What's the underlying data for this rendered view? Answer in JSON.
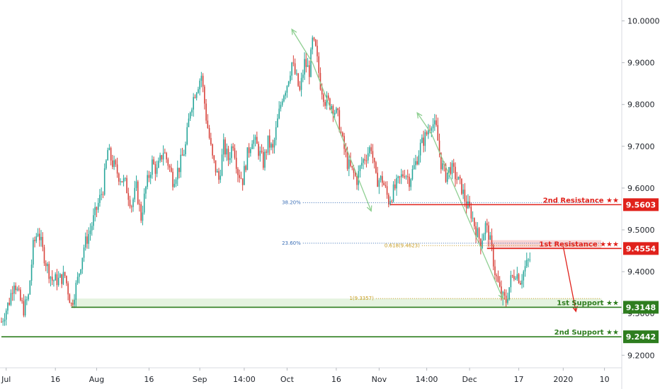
{
  "colors": {
    "up": "#26a69a",
    "down": "#d7413a",
    "support": "#2e7d1f",
    "resistance": "#e0221c",
    "fib_blue": "#3b6fb6",
    "fib_gold": "#c79a1c",
    "arrow_green": "#8fcf92",
    "zone_support": "#dff0d8",
    "zone_resistance": "#f6c9c9"
  },
  "chart_data": {
    "type": "candlestick",
    "ylim": [
      9.17,
      10.05
    ],
    "y_ticks": [
      "10.0000",
      "9.9000",
      "9.8000",
      "9.7000",
      "9.6000",
      "9.5000",
      "9.4000",
      "9.3000",
      "9.2000"
    ],
    "y_tick_values": [
      10.0,
      9.9,
      9.8,
      9.7,
      9.6,
      9.5,
      9.4,
      9.3,
      9.2
    ],
    "x_ticks": [
      "Jul",
      "16",
      "Aug",
      "16",
      "Sep",
      "14:00",
      "Oct",
      "16",
      "Nov",
      "14:00",
      "Dec",
      "17",
      "2020",
      "10"
    ],
    "x_tick_index": [
      3,
      34,
      60,
      93,
      125,
      153,
      180,
      211,
      238,
      268,
      295,
      326,
      354,
      380
    ],
    "x_count": 390,
    "grid": false,
    "levels": [
      {
        "id": "r2",
        "label": "2nd Resistance ★★",
        "value": "9.5603",
        "y": 9.5603,
        "start_index": 245,
        "kind": "resistance"
      },
      {
        "id": "r1",
        "label": "1st Resistance ★★★",
        "value": "9.4554",
        "y": 9.4554,
        "start_index": 306,
        "kind": "resistance"
      },
      {
        "id": "s1",
        "label": "1st Support ★★",
        "value": "9.3148",
        "y": 9.3148,
        "start_index": 44,
        "kind": "support"
      },
      {
        "id": "s2",
        "label": "2nd Support ★★",
        "value": "9.2442",
        "y": 9.2442,
        "start_index": 0,
        "kind": "support"
      }
    ],
    "fib_labels": [
      {
        "id": "f382",
        "text": "38.20%",
        "y": 9.565,
        "from": 190,
        "to": 378,
        "color": "blue"
      },
      {
        "id": "f236",
        "text": "23.60%",
        "y": 9.468,
        "from": 190,
        "to": 378,
        "color": "blue"
      },
      {
        "id": "f618",
        "text": "0.618(9.4623)",
        "y": 9.4623,
        "from": 265,
        "to": 378,
        "color": "gold"
      },
      {
        "id": "f1",
        "text": "1(9.3357)",
        "y": 9.3357,
        "from": 236,
        "to": 378,
        "color": "gold"
      }
    ],
    "ohlc_path": [
      [
        0,
        9.28
      ],
      [
        5,
        9.33
      ],
      [
        8,
        9.38
      ],
      [
        11,
        9.34
      ],
      [
        14,
        9.31
      ],
      [
        17,
        9.34
      ],
      [
        20,
        9.46
      ],
      [
        23,
        9.5
      ],
      [
        26,
        9.45
      ],
      [
        29,
        9.41
      ],
      [
        32,
        9.38
      ],
      [
        36,
        9.38
      ],
      [
        40,
        9.39
      ],
      [
        44,
        9.32
      ],
      [
        48,
        9.38
      ],
      [
        52,
        9.46
      ],
      [
        56,
        9.5
      ],
      [
        60,
        9.55
      ],
      [
        64,
        9.6
      ],
      [
        67,
        9.69
      ],
      [
        70,
        9.66
      ],
      [
        74,
        9.63
      ],
      [
        78,
        9.61
      ],
      [
        82,
        9.56
      ],
      [
        85,
        9.6
      ],
      [
        88,
        9.53
      ],
      [
        91,
        9.6
      ],
      [
        95,
        9.66
      ],
      [
        98,
        9.64
      ],
      [
        102,
        9.69
      ],
      [
        105,
        9.66
      ],
      [
        108,
        9.62
      ],
      [
        112,
        9.65
      ],
      [
        116,
        9.7
      ],
      [
        119,
        9.79
      ],
      [
        122,
        9.83
      ],
      [
        126,
        9.87
      ],
      [
        129,
        9.77
      ],
      [
        133,
        9.67
      ],
      [
        137,
        9.62
      ],
      [
        140,
        9.7
      ],
      [
        143,
        9.67
      ],
      [
        146,
        9.71
      ],
      [
        149,
        9.64
      ],
      [
        152,
        9.62
      ],
      [
        155,
        9.68
      ],
      [
        158,
        9.72
      ],
      [
        161,
        9.7
      ],
      [
        165,
        9.66
      ],
      [
        168,
        9.71
      ],
      [
        171,
        9.69
      ],
      [
        174,
        9.76
      ],
      [
        177,
        9.82
      ],
      [
        180,
        9.85
      ],
      [
        183,
        9.9
      ],
      [
        186,
        9.86
      ],
      [
        188,
        9.83
      ],
      [
        191,
        9.9
      ],
      [
        194,
        9.88
      ],
      [
        196,
        9.95
      ],
      [
        198,
        9.93
      ],
      [
        201,
        9.85
      ],
      [
        204,
        9.81
      ],
      [
        208,
        9.8
      ],
      [
        212,
        9.77
      ],
      [
        215,
        9.71
      ],
      [
        218,
        9.66
      ],
      [
        221,
        9.64
      ],
      [
        224,
        9.62
      ],
      [
        227,
        9.66
      ],
      [
        230,
        9.68
      ],
      [
        233,
        9.7
      ],
      [
        236,
        9.62
      ],
      [
        240,
        9.62
      ],
      [
        244,
        9.57
      ],
      [
        248,
        9.6
      ],
      [
        251,
        9.62
      ],
      [
        254,
        9.64
      ],
      [
        257,
        9.62
      ],
      [
        261,
        9.66
      ],
      [
        264,
        9.7
      ],
      [
        268,
        9.73
      ],
      [
        271,
        9.76
      ],
      [
        274,
        9.74
      ],
      [
        277,
        9.66
      ],
      [
        280,
        9.63
      ],
      [
        283,
        9.65
      ],
      [
        286,
        9.63
      ],
      [
        290,
        9.6
      ],
      [
        293,
        9.56
      ],
      [
        296,
        9.54
      ],
      [
        299,
        9.5
      ],
      [
        302,
        9.47
      ],
      [
        305,
        9.51
      ],
      [
        307,
        9.49
      ],
      [
        309,
        9.45
      ],
      [
        311,
        9.4
      ],
      [
        313,
        9.37
      ],
      [
        315,
        9.34
      ],
      [
        318,
        9.33
      ],
      [
        321,
        9.38
      ],
      [
        324,
        9.4
      ],
      [
        327,
        9.38
      ],
      [
        330,
        9.41
      ],
      [
        333,
        9.43
      ]
    ]
  }
}
